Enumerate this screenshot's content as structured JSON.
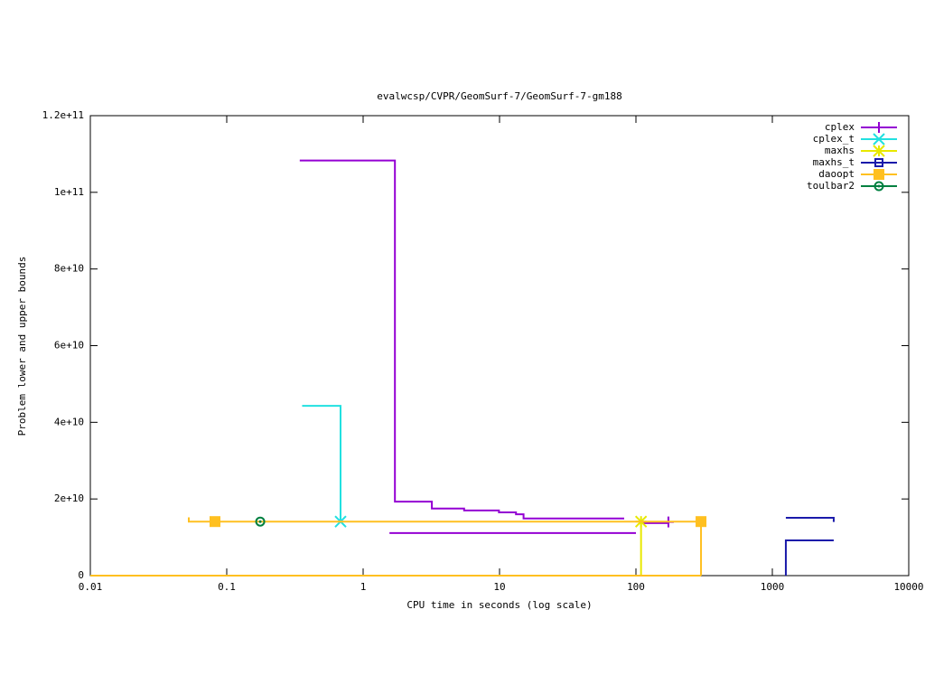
{
  "chart_data": {
    "type": "line",
    "title": "evalwcsp/CVPR/GeomSurf-7/GeomSurf-7-gm188",
    "x_label": "CPU time in seconds (log scale)",
    "y_label": "Problem lower and upper bounds",
    "x_log": true,
    "grid": false,
    "legend": "top-right",
    "xlim": [
      0.01,
      10000
    ],
    "xticks": [
      0.01,
      0.1,
      1,
      10,
      100,
      1000,
      10000
    ],
    "ylim": [
      0,
      120000000000
    ],
    "yticks": [
      0,
      {
        "value": 20000000000,
        "label": "2e+10"
      },
      {
        "value": 40000000000,
        "label": "4e+10"
      },
      {
        "value": 60000000000,
        "label": "6e+10"
      },
      {
        "value": 80000000000,
        "label": "8e+10"
      },
      {
        "value": 100000000000,
        "label": "1e+11"
      },
      {
        "value": 120000000000,
        "label": "1.2e+11"
      }
    ],
    "series": [
      {
        "name": "cplex",
        "color": "#9400d3",
        "marker": "plus",
        "x": [
          0.343,
          1.71,
          1.71,
          3.19,
          3.19,
          5.5,
          5.5,
          9.9,
          9.9,
          13.2,
          13.2,
          15,
          15,
          82,
          null,
          112,
          173,
          173,
          null,
          1.56,
          100
        ],
        "values": [
          108300000000,
          108300000000,
          19300000000,
          19300000000,
          17500000000,
          17500000000,
          17000000000,
          17000000000,
          16500000000,
          16500000000,
          16000000000,
          16000000000,
          14900000000,
          14900000000,
          null,
          13700000000,
          13700000000,
          15200000000,
          null,
          11100000000,
          11100000000
        ],
        "marker_x": [
          173
        ],
        "marker_values": [
          14000000000
        ]
      },
      {
        "name": "cplex_t",
        "color": "#22e0e0",
        "marker": "cross",
        "x": [
          0.357,
          0.683,
          0.683
        ],
        "values": [
          44300000000,
          44300000000,
          14100000000
        ],
        "marker_x": [
          0.683
        ],
        "marker_values": [
          14100000000
        ]
      },
      {
        "name": "maxhs",
        "color": "#e8e800",
        "marker": "star",
        "x": [
          0.01,
          109,
          null,
          109,
          109
        ],
        "values": [
          0,
          0,
          null,
          14100000000,
          0
        ],
        "marker_x": [
          109
        ],
        "marker_values": [
          14100000000
        ]
      },
      {
        "name": "maxhs_t",
        "color": "#1a1aaa",
        "marker": "box-open",
        "x": [
          1256,
          1256,
          2818,
          null,
          1256,
          2818,
          2818
        ],
        "values": [
          0,
          9200000000,
          9200000000,
          null,
          15100000000,
          15100000000,
          14000000000
        ],
        "marker_x": [],
        "marker_values": []
      },
      {
        "name": "daoopt",
        "color": "#ffc020",
        "marker": "box-filled",
        "x": [
          0.0527,
          0.0527,
          300,
          300,
          null,
          0.01,
          300
        ],
        "values": [
          15200000000,
          14100000000,
          14100000000,
          0,
          null,
          0,
          0
        ],
        "marker_x": [
          0.082,
          300
        ],
        "marker_values": [
          14100000000,
          14100000000
        ]
      },
      {
        "name": "toulbar2",
        "color": "#008040",
        "marker": "circle",
        "x": [],
        "values": [],
        "marker_x": [
          0.176
        ],
        "marker_values": [
          14100000000
        ]
      }
    ]
  }
}
